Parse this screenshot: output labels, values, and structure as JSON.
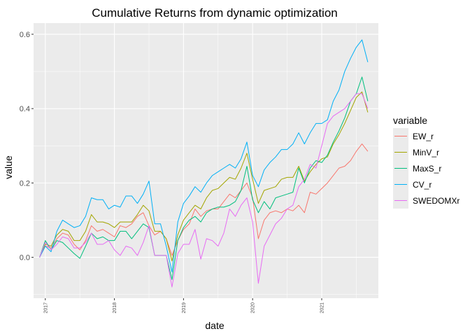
{
  "chart_data": {
    "type": "line",
    "title": "Cumulative Returns from dynamic optimization",
    "xlabel": "date",
    "ylabel": "value",
    "xlim": [
      2016.83,
      2021.82
    ],
    "ylim": [
      -0.11,
      0.63
    ],
    "y_ticks": [
      0.0,
      0.2,
      0.4,
      0.6
    ],
    "y_tick_labels": [
      "0.0",
      "0.2",
      "0.4",
      "0.6"
    ],
    "x_ticks": [
      2017,
      2018,
      2019,
      2020,
      2021
    ],
    "x_tick_labels": [
      "2017",
      "2018",
      "2019",
      "2020",
      "2021"
    ],
    "grid": true,
    "legend": {
      "title": "variable",
      "position": "right"
    },
    "x": [
      2016.917,
      2017.0,
      2017.083,
      2017.167,
      2017.25,
      2017.333,
      2017.417,
      2017.5,
      2017.583,
      2017.667,
      2017.75,
      2017.833,
      2017.917,
      2018.0,
      2018.083,
      2018.167,
      2018.25,
      2018.333,
      2018.417,
      2018.5,
      2018.583,
      2018.667,
      2018.75,
      2018.833,
      2018.917,
      2019.0,
      2019.083,
      2019.167,
      2019.25,
      2019.333,
      2019.417,
      2019.5,
      2019.583,
      2019.667,
      2019.75,
      2019.833,
      2019.917,
      2020.0,
      2020.083,
      2020.167,
      2020.25,
      2020.333,
      2020.417,
      2020.5,
      2020.583,
      2020.667,
      2020.75,
      2020.833,
      2020.917,
      2021.0,
      2021.083,
      2021.167,
      2021.25,
      2021.333,
      2021.417,
      2021.5,
      2021.583,
      2021.667
    ],
    "series": [
      {
        "name": "EW_r",
        "color": "#F8766D",
        "values": [
          0.0,
          0.03,
          0.025,
          0.05,
          0.065,
          0.06,
          0.035,
          0.02,
          0.045,
          0.085,
          0.07,
          0.075,
          0.065,
          0.055,
          0.085,
          0.08,
          0.09,
          0.11,
          0.12,
          0.085,
          0.06,
          0.07,
          0.05,
          0.005,
          0.045,
          0.075,
          0.09,
          0.13,
          0.11,
          0.125,
          0.13,
          0.13,
          0.15,
          0.17,
          0.16,
          0.18,
          0.2,
          0.16,
          0.05,
          0.1,
          0.12,
          0.125,
          0.12,
          0.13,
          0.125,
          0.14,
          0.12,
          0.175,
          0.17,
          0.185,
          0.2,
          0.22,
          0.24,
          0.245,
          0.26,
          0.285,
          0.305,
          0.285
        ]
      },
      {
        "name": "MinV_r",
        "color": "#A3A500",
        "values": [
          0.0,
          0.035,
          0.03,
          0.06,
          0.075,
          0.07,
          0.045,
          0.045,
          0.07,
          0.115,
          0.095,
          0.095,
          0.09,
          0.08,
          0.095,
          0.095,
          0.095,
          0.115,
          0.14,
          0.125,
          0.07,
          0.07,
          0.05,
          -0.01,
          0.06,
          0.1,
          0.12,
          0.14,
          0.13,
          0.16,
          0.18,
          0.185,
          0.2,
          0.215,
          0.21,
          0.24,
          0.28,
          0.21,
          0.145,
          0.18,
          0.185,
          0.19,
          0.21,
          0.215,
          0.215,
          0.245,
          0.205,
          0.23,
          0.25,
          0.265,
          0.27,
          0.305,
          0.33,
          0.36,
          0.395,
          0.43,
          0.445,
          0.39
        ]
      },
      {
        "name": "MaxS_r",
        "color": "#00BF7D",
        "values": [
          0.0,
          0.045,
          0.02,
          0.045,
          0.04,
          0.025,
          0.01,
          -0.003,
          0.03,
          0.065,
          0.05,
          0.055,
          0.045,
          0.045,
          0.07,
          0.07,
          0.05,
          0.07,
          0.09,
          0.08,
          0.005,
          0.005,
          0.005,
          -0.06,
          0.045,
          0.08,
          0.1,
          0.11,
          0.095,
          0.12,
          0.13,
          0.135,
          0.135,
          0.14,
          0.15,
          0.18,
          0.245,
          0.155,
          0.12,
          0.15,
          0.13,
          0.16,
          0.165,
          0.17,
          0.175,
          0.24,
          0.2,
          0.24,
          0.26,
          0.255,
          0.275,
          0.31,
          0.34,
          0.375,
          0.42,
          0.44,
          0.485,
          0.42
        ]
      },
      {
        "name": "CV_r",
        "color": "#00B0F6",
        "values": [
          0.0,
          0.03,
          0.015,
          0.07,
          0.1,
          0.09,
          0.08,
          0.085,
          0.11,
          0.16,
          0.155,
          0.155,
          0.13,
          0.14,
          0.135,
          0.165,
          0.165,
          0.145,
          0.17,
          0.205,
          0.09,
          0.09,
          0.03,
          -0.04,
          0.095,
          0.145,
          0.165,
          0.19,
          0.175,
          0.2,
          0.22,
          0.23,
          0.24,
          0.25,
          0.24,
          0.265,
          0.31,
          0.22,
          0.19,
          0.235,
          0.255,
          0.27,
          0.29,
          0.29,
          0.305,
          0.335,
          0.305,
          0.335,
          0.36,
          0.36,
          0.37,
          0.42,
          0.45,
          0.5,
          0.535,
          0.565,
          0.585,
          0.525
        ]
      },
      {
        "name": "SWEDOMXr",
        "color": "#E76BF3",
        "values": [
          0.0,
          0.04,
          0.02,
          0.035,
          0.055,
          0.05,
          0.025,
          0.025,
          0.04,
          0.065,
          0.035,
          0.035,
          0.045,
          0.02,
          0.005,
          0.03,
          0.025,
          0.005,
          0.04,
          0.085,
          0.005,
          0.005,
          0.005,
          -0.08,
          0.01,
          0.035,
          0.035,
          0.075,
          -0.005,
          0.05,
          0.045,
          0.03,
          0.065,
          0.13,
          0.11,
          0.14,
          0.16,
          0.095,
          -0.07,
          0.03,
          0.06,
          0.09,
          0.105,
          0.13,
          0.14,
          0.19,
          0.21,
          0.25,
          0.24,
          0.3,
          0.36,
          0.38,
          0.39,
          0.4,
          0.42,
          0.44,
          0.44,
          0.4
        ]
      }
    ]
  }
}
